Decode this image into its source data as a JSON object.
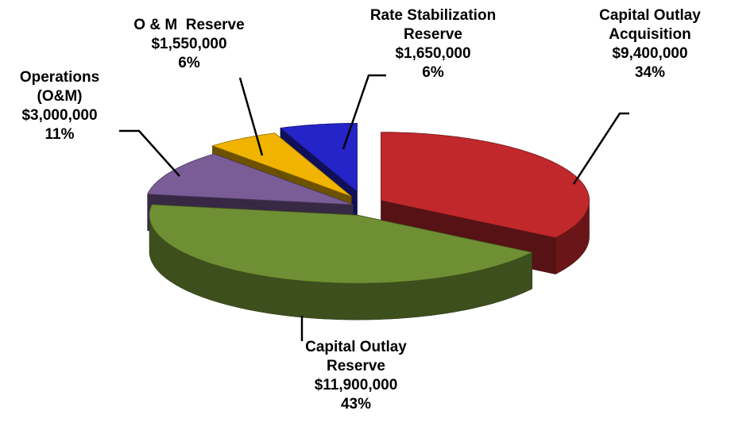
{
  "chart_data": {
    "type": "pie",
    "categories": [
      "Capital Outlay\nAcquisition",
      "Capital Outlay\nReserve",
      "Operations\n(O&M)",
      "O & M  Reserve",
      "Rate Stabilization\nReserve"
    ],
    "values": [
      9400000,
      11900000,
      3000000,
      1550000,
      1650000
    ],
    "value_labels": [
      "$9,400,000",
      "$11,900,000",
      "$3,000,000",
      "$1,550,000",
      "$1,650,000"
    ],
    "percent_labels": [
      "34%",
      "43%",
      "11%",
      "6%",
      "6%"
    ],
    "colors": [
      "#c0282c",
      "#6f8f34",
      "#7a5c96",
      "#f0b400",
      "#2424c8"
    ]
  }
}
